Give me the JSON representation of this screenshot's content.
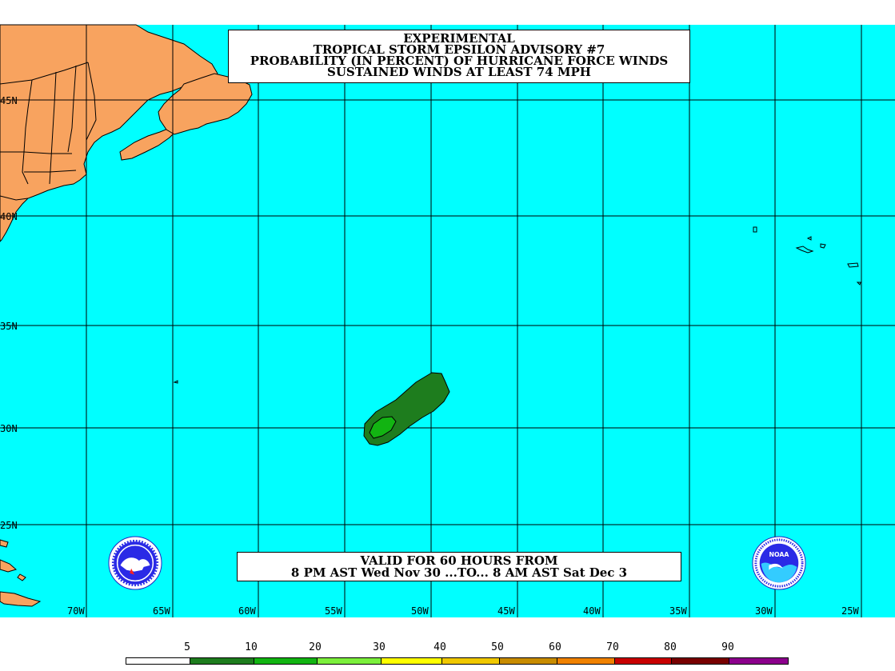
{
  "title": {
    "lines": [
      "EXPERIMENTAL",
      "TROPICAL STORM EPSILON ADVISORY #7",
      "PROBABILITY (IN PERCENT) OF HURRICANE FORCE WINDS",
      "SUSTAINED WINDS AT LEAST 74 MPH"
    ]
  },
  "valid": {
    "line1": "VALID FOR 60 HOURS FROM",
    "line2": "8 PM AST Wed Nov 30 ...TO... 8 AM AST Sat Dec 3"
  },
  "latitudes": [
    "45N",
    "40N",
    "35N",
    "30N",
    "25N"
  ],
  "longitudes": [
    "70W",
    "65W",
    "60W",
    "55W",
    "50W",
    "45W",
    "40W",
    "35W",
    "30W",
    "25W"
  ],
  "legend": {
    "labels": [
      "5",
      "10",
      "20",
      "30",
      "40",
      "50",
      "60",
      "70",
      "80",
      "90"
    ],
    "colors": [
      "#ffffff",
      "#1e7d1e",
      "#12b412",
      "#7cf03c",
      "#ffff00",
      "#f0c800",
      "#c88c00",
      "#f08200",
      "#c80000",
      "#780000",
      "#8c008c"
    ]
  },
  "colors": {
    "ocean": "#00ffff",
    "land": "#f8a35f",
    "prob_outer": "#1e7d1e",
    "prob_inner": "#12b412"
  },
  "logos": {
    "left": "nws-logo",
    "right": "noaa-logo",
    "right_text": "NOAA"
  }
}
